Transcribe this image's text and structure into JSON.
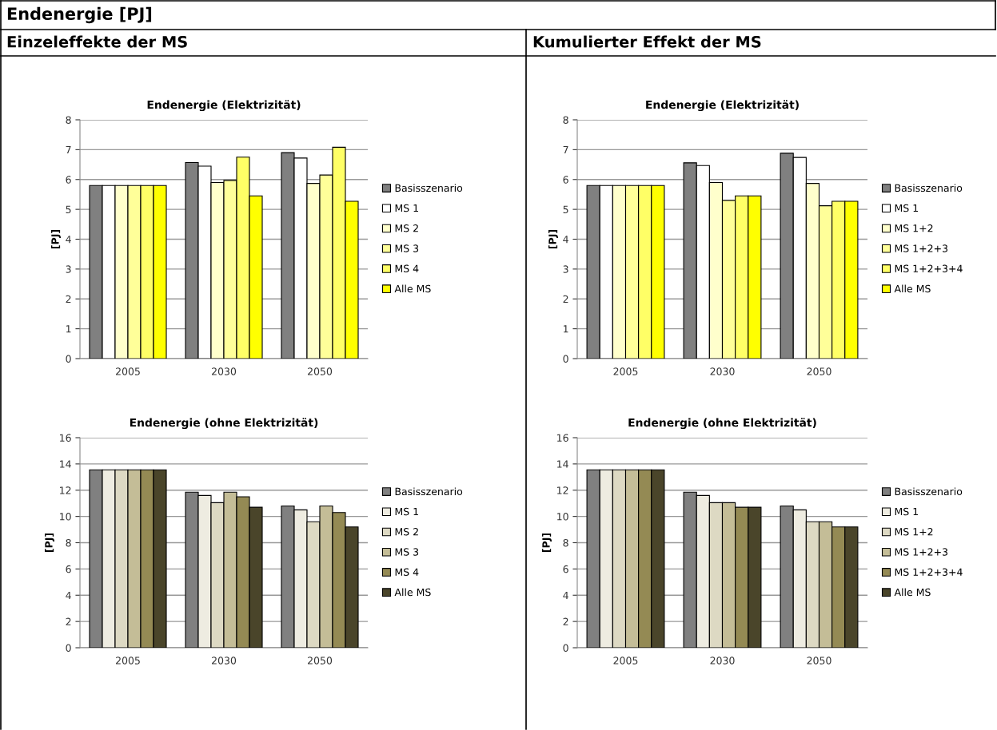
{
  "chart_data": [
    {
      "type": "bar",
      "title": "Endenergie (Elektrizität)",
      "ylabel": "[PJ]",
      "annotations": [
        "Endenergie [PJ]",
        "Einzeleffekte der MS"
      ],
      "categories": [
        "2005",
        "2030",
        "2050"
      ],
      "ylim": [
        0,
        8
      ],
      "yticks": [
        0,
        1,
        2,
        3,
        4,
        5,
        6,
        7,
        8
      ],
      "grid": "y",
      "legend": "right",
      "series": [
        {
          "name": "Basisszenario",
          "color": "#808080",
          "values": [
            5.8,
            6.57,
            6.9
          ]
        },
        {
          "name": "MS 1",
          "color": "#ffffff",
          "values": [
            5.8,
            6.45,
            6.72
          ]
        },
        {
          "name": "MS 2",
          "color": "#ffffcc",
          "values": [
            5.8,
            5.9,
            5.87
          ]
        },
        {
          "name": "MS 3",
          "color": "#ffff99",
          "values": [
            5.8,
            5.97,
            6.15
          ]
        },
        {
          "name": "MS 4",
          "color": "#ffff66",
          "values": [
            5.8,
            6.75,
            7.08
          ]
        },
        {
          "name": "Alle MS",
          "color": "#ffff00",
          "values": [
            5.8,
            5.45,
            5.27
          ]
        }
      ]
    },
    {
      "type": "bar",
      "title": "Endenergie (Elektrizität)",
      "ylabel": "[PJ]",
      "annotations": [
        "Kumulierter Effekt der MS"
      ],
      "categories": [
        "2005",
        "2030",
        "2050"
      ],
      "ylim": [
        0,
        8
      ],
      "yticks": [
        0,
        1,
        2,
        3,
        4,
        5,
        6,
        7,
        8
      ],
      "grid": "y",
      "legend": "right",
      "series": [
        {
          "name": "Basisszenario",
          "color": "#808080",
          "values": [
            5.8,
            6.56,
            6.88
          ]
        },
        {
          "name": "MS 1",
          "color": "#ffffff",
          "values": [
            5.8,
            6.47,
            6.74
          ]
        },
        {
          "name": "MS 1+2",
          "color": "#ffffcc",
          "values": [
            5.8,
            5.9,
            5.87
          ]
        },
        {
          "name": "MS 1+2+3",
          "color": "#ffff99",
          "values": [
            5.8,
            5.3,
            5.12
          ]
        },
        {
          "name": "MS 1+2+3+4",
          "color": "#ffff66",
          "values": [
            5.8,
            5.45,
            5.27
          ]
        },
        {
          "name": "Alle MS",
          "color": "#ffff00",
          "values": [
            5.8,
            5.45,
            5.27
          ]
        }
      ]
    },
    {
      "type": "bar",
      "title": "Endenergie (ohne Elektrizität)",
      "ylabel": "[PJ]",
      "categories": [
        "2005",
        "2030",
        "2050"
      ],
      "ylim": [
        0,
        16
      ],
      "yticks": [
        0,
        2,
        4,
        6,
        8,
        10,
        12,
        14,
        16
      ],
      "grid": "y",
      "legend": "right",
      "series": [
        {
          "name": "Basisszenario",
          "color": "#808080",
          "values": [
            13.55,
            11.85,
            10.8
          ]
        },
        {
          "name": "MS 1",
          "color": "#eeece1",
          "values": [
            13.55,
            11.6,
            10.5
          ]
        },
        {
          "name": "MS 2",
          "color": "#ddd9c3",
          "values": [
            13.55,
            11.05,
            9.6
          ]
        },
        {
          "name": "MS 3",
          "color": "#c4bd97",
          "values": [
            13.55,
            11.85,
            10.8
          ]
        },
        {
          "name": "MS 4",
          "color": "#948a54",
          "values": [
            13.55,
            11.5,
            10.3
          ]
        },
        {
          "name": "Alle MS",
          "color": "#4a452a",
          "values": [
            13.55,
            10.7,
            9.2
          ]
        }
      ]
    },
    {
      "type": "bar",
      "title": "Endenergie (ohne Elektrizität)",
      "ylabel": "[PJ]",
      "categories": [
        "2005",
        "2030",
        "2050"
      ],
      "ylim": [
        0,
        16
      ],
      "yticks": [
        0,
        2,
        4,
        6,
        8,
        10,
        12,
        14,
        16
      ],
      "grid": "y",
      "legend": "right",
      "series": [
        {
          "name": "Basisszenario",
          "color": "#808080",
          "values": [
            13.55,
            11.85,
            10.8
          ]
        },
        {
          "name": "MS 1",
          "color": "#eeece1",
          "values": [
            13.55,
            11.6,
            10.5
          ]
        },
        {
          "name": "MS 1+2",
          "color": "#ddd9c3",
          "values": [
            13.55,
            11.05,
            9.6
          ]
        },
        {
          "name": "MS 1+2+3",
          "color": "#c4bd97",
          "values": [
            13.55,
            11.05,
            9.6
          ]
        },
        {
          "name": "MS 1+2+3+4",
          "color": "#948a54",
          "values": [
            13.55,
            10.7,
            9.2
          ]
        },
        {
          "name": "Alle MS",
          "color": "#4a452a",
          "values": [
            13.55,
            10.7,
            9.2
          ]
        }
      ]
    }
  ]
}
